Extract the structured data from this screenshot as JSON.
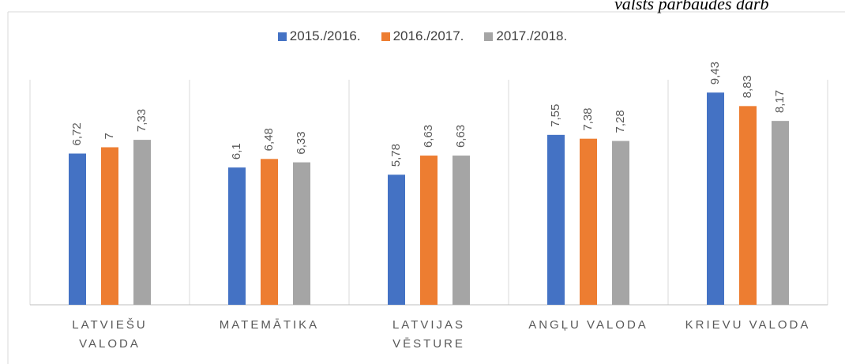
{
  "chart_data": {
    "type": "bar",
    "annotation": "valsts pārbaudes darb",
    "categories": [
      "LATVIEŠU VALODA",
      "MATEMĀTIKA",
      "LATVIJAS VĒSTURE",
      "ANGĻU VALODA",
      "KRIEVU VALODA"
    ],
    "series": [
      {
        "name": "2015./2016.",
        "color": "#4472c4",
        "values": [
          6.72,
          6.1,
          5.78,
          7.55,
          9.43
        ],
        "value_labels": [
          "6,72",
          "6,1",
          "5,78",
          "7,55",
          "9,43"
        ]
      },
      {
        "name": "2016./2017.",
        "color": "#ed7d31",
        "values": [
          7,
          6.48,
          6.63,
          7.38,
          8.83
        ],
        "value_labels": [
          "7",
          "6,48",
          "6,63",
          "7,38",
          "8,83"
        ]
      },
      {
        "name": "2017./2018.",
        "color": "#a5a5a5",
        "values": [
          7.33,
          6.33,
          6.63,
          7.28,
          8.17
        ],
        "value_labels": [
          "7,33",
          "6,33",
          "6,63",
          "7,28",
          "8,17"
        ]
      }
    ],
    "ylim": [
      0,
      10
    ],
    "legend": "top"
  }
}
